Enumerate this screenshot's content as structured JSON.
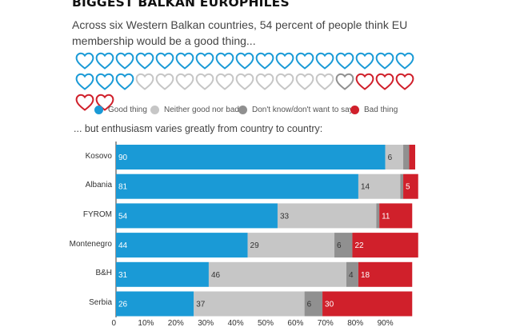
{
  "header": {
    "title": "BIGGEST BALKAN EUROPHILES",
    "intro": "Across six Western Balkan countries, 54 percent of people think EU membership would be a good thing...",
    "subtitle": "... but enthusiasm varies greatly from country to country:"
  },
  "hearts": {
    "per_row": 17,
    "sequence": [
      {
        "category": "good",
        "count": 20
      },
      {
        "category": "neither",
        "count": 10
      },
      {
        "category": "dontknow",
        "count": 1
      },
      {
        "category": "bad",
        "count": 5
      }
    ]
  },
  "legend": [
    {
      "key": "good",
      "label": "Good thing",
      "color": "#1a9ad6"
    },
    {
      "key": "neither",
      "label": "Neither good nor bad",
      "color": "#c6c6c6"
    },
    {
      "key": "dontknow",
      "label": "Don't know/don't want to say",
      "color": "#909090"
    },
    {
      "key": "bad",
      "label": "Bad thing",
      "color": "#d0202b"
    }
  ],
  "chart_data": {
    "type": "bar",
    "orientation": "horizontal",
    "stacked": true,
    "categories": [
      "Kosovo",
      "Albania",
      "FYROM",
      "Montenegro",
      "B&H",
      "Serbia"
    ],
    "series": [
      {
        "name": "Good thing",
        "color": "#1a9ad6",
        "values": [
          90,
          81,
          54,
          44,
          31,
          26
        ]
      },
      {
        "name": "Neither good nor bad",
        "color": "#c6c6c6",
        "values": [
          6,
          14,
          33,
          29,
          46,
          37
        ]
      },
      {
        "name": "Don't know/don't want to say",
        "color": "#909090",
        "values": [
          2,
          1,
          1,
          6,
          4,
          6
        ]
      },
      {
        "name": "Bad thing",
        "color": "#d0202b",
        "values": [
          2,
          5,
          11,
          22,
          18,
          30
        ]
      }
    ],
    "data_labels": [
      [
        "90",
        "6",
        "",
        ""
      ],
      [
        "81",
        "14",
        "",
        "5"
      ],
      [
        "54",
        "33",
        "",
        "11"
      ],
      [
        "44",
        "29",
        "6",
        "22"
      ],
      [
        "31",
        "46",
        "4",
        "18"
      ],
      [
        "26",
        "37",
        "6",
        "30"
      ]
    ],
    "xlim": [
      0,
      100
    ],
    "x_ticks": [
      "0",
      "10%",
      "20%",
      "30%",
      "40%",
      "50%",
      "60%",
      "70%",
      "80%",
      "90%"
    ]
  }
}
